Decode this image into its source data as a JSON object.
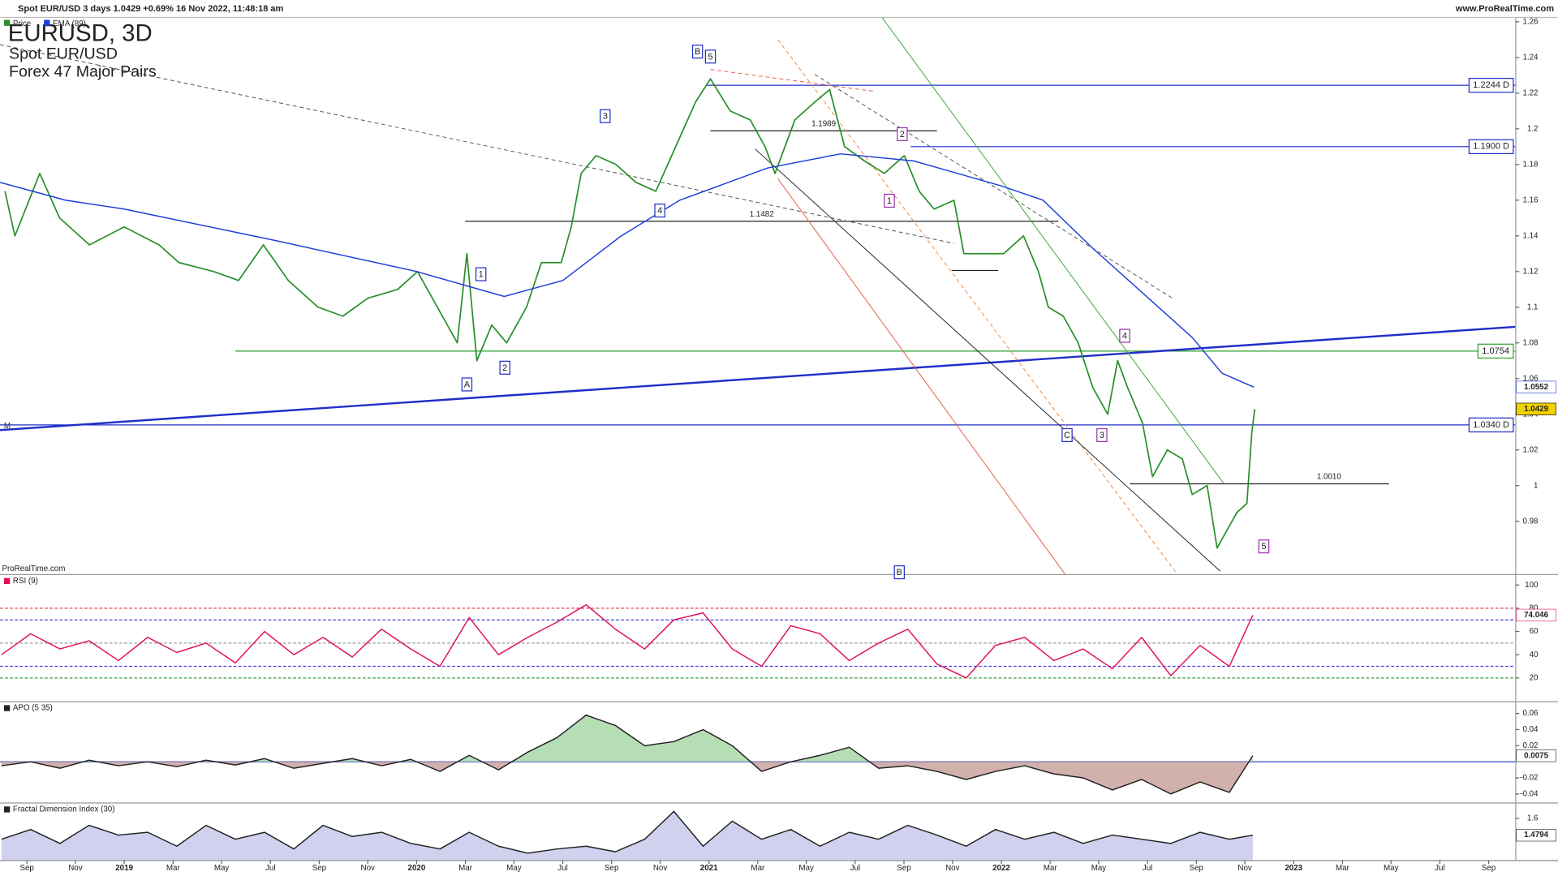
{
  "header": {
    "title": "Spot EUR/USD 3 days 1.0429 +0.69% 16 Nov 2022, 11:48:18 am",
    "site": "www.ProRealTime.com",
    "watermark": "ProRealTime.com",
    "marker": "M"
  },
  "chart_data": [
    {
      "type": "line",
      "title": "EURUSD, 3D",
      "subtitle": "Spot EUR/USD",
      "group": "Forex 47 Major Pairs",
      "xlim": [
        2018.575,
        2023.758
      ],
      "ylim": [
        0.9504,
        1.2622
      ],
      "yticks": [
        0.98,
        1,
        1.02,
        1.04,
        1.06,
        1.08,
        1.1,
        1.12,
        1.14,
        1.16,
        1.18,
        1.2,
        1.22,
        1.24,
        1.26
      ],
      "series": [
        {
          "name": "Price",
          "color": "#2a8f2a",
          "x": [
            2018.592,
            2018.626,
            2018.711,
            2018.779,
            2018.881,
            2019.0,
            2019.119,
            2019.187,
            2019.306,
            2019.391,
            2019.476,
            2019.561,
            2019.663,
            2019.748,
            2019.833,
            2019.935,
            2020.003,
            2020.088,
            2020.139,
            2020.172,
            2020.206,
            2020.257,
            2020.308,
            2020.376,
            2020.427,
            2020.495,
            2020.529,
            2020.563,
            2020.614,
            2020.682,
            2020.75,
            2020.818,
            2020.886,
            2020.954,
            2021.005,
            2021.073,
            2021.141,
            2021.192,
            2021.226,
            2021.294,
            2021.362,
            2021.413,
            2021.464,
            2021.532,
            2021.6,
            2021.668,
            2021.719,
            2021.77,
            2021.838,
            2021.872,
            2021.94,
            2022.008,
            2022.076,
            2022.127,
            2022.161,
            2022.212,
            2022.263,
            2022.313,
            2022.364,
            2022.398,
            2022.432,
            2022.483,
            2022.517,
            2022.568,
            2022.619,
            2022.653,
            2022.704,
            2022.738,
            2022.772,
            2022.806,
            2022.84,
            2022.857,
            2022.867
          ],
          "values": [
            1.165,
            1.14,
            1.175,
            1.15,
            1.135,
            1.145,
            1.135,
            1.125,
            1.12,
            1.115,
            1.135,
            1.115,
            1.1,
            1.095,
            1.105,
            1.11,
            1.12,
            1.095,
            1.08,
            1.13,
            1.07,
            1.09,
            1.08,
            1.1,
            1.125,
            1.125,
            1.145,
            1.175,
            1.185,
            1.18,
            1.17,
            1.165,
            1.19,
            1.215,
            1.228,
            1.21,
            1.205,
            1.19,
            1.175,
            1.205,
            1.215,
            1.222,
            1.19,
            1.182,
            1.175,
            1.185,
            1.165,
            1.155,
            1.16,
            1.13,
            1.13,
            1.13,
            1.14,
            1.12,
            1.1,
            1.095,
            1.08,
            1.055,
            1.04,
            1.07,
            1.055,
            1.035,
            1.005,
            1.02,
            1.015,
            0.995,
            1.0,
            0.965,
            0.975,
            0.985,
            0.99,
            1.03,
            1.0429
          ]
        },
        {
          "name": "EMA (89)",
          "color": "#1f3fd8",
          "x": [
            2018.575,
            2018.8,
            2019.0,
            2019.5,
            2020.0,
            2020.3,
            2020.5,
            2020.7,
            2020.9,
            2021.2,
            2021.45,
            2021.7,
            2022.0,
            2022.143,
            2022.313,
            2022.483,
            2022.653,
            2022.755,
            2022.864
          ],
          "values": [
            1.17,
            1.16,
            1.155,
            1.138,
            1.12,
            1.106,
            1.115,
            1.14,
            1.16,
            1.178,
            1.186,
            1.182,
            1.168,
            1.16,
            1.133,
            1.108,
            1.083,
            1.063,
            1.0552
          ]
        }
      ],
      "levels": [
        {
          "value": 1.2244,
          "label": "1.2244 D",
          "color": "#1f2fc8",
          "from": 2020.99
        },
        {
          "value": 1.19,
          "label": "1.1900 D",
          "color": "#1f2fc8",
          "from": 2021.69
        },
        {
          "value": 1.034,
          "label": "1.0340 D",
          "color": "#1f2fc8",
          "from": 2018.575
        },
        {
          "value": 1.0754,
          "color": "#2ca02c",
          "from": 2019.38
        }
      ],
      "segments": [
        {
          "value": 1.1482,
          "label": "1.1482",
          "x": [
            2020.166,
            2022.195
          ]
        },
        {
          "value": 1.1989,
          "label": "1.1989",
          "x": [
            2021.005,
            2021.78
          ]
        },
        {
          "value": 1.001,
          "label": "1.0010",
          "x": [
            2022.44,
            2023.326
          ]
        },
        {
          "value": 1.1206,
          "x": [
            2021.83,
            2021.99
          ]
        }
      ],
      "trendlines": [
        {
          "x": [
            2018.575,
            2023.758
          ],
          "values": [
            1.0311,
            1.089
          ],
          "color": "#1f2fc8",
          "width": 2
        },
        {
          "x": [
            2021.593,
            2022.762
          ],
          "values": [
            1.2622,
            1.0009
          ],
          "color": "#3aa83a",
          "width": 0.8
        },
        {
          "x": [
            2021.236,
            2022.218
          ],
          "values": [
            1.172,
            0.9503
          ],
          "color": "#e06050",
          "width": 0.8
        },
        {
          "x": [
            2021.236,
            2022.602
          ],
          "values": [
            1.25,
            0.9503
          ],
          "color": "#f08a40",
          "width": 0.8,
          "dash": true
        },
        {
          "x": [
            2021.158,
            2022.749
          ],
          "values": [
            1.1887,
            0.952
          ],
          "color": "#222222",
          "width": 0.8
        },
        {
          "x": [
            2018.575,
            2021.838
          ],
          "values": [
            1.2472,
            1.1358
          ],
          "color": "#555555",
          "width": 0.8,
          "dash": true
        },
        {
          "x": [
            2021.362,
            2022.585
          ],
          "values": [
            1.2305,
            1.1051
          ],
          "color": "#555555",
          "width": 0.8,
          "dash": true
        },
        {
          "x": [
            2021.005,
            2021.566
          ],
          "values": [
            1.2333,
            1.221
          ],
          "color": "#e06050",
          "width": 0.8,
          "dash": true
        }
      ],
      "annotations": [
        {
          "label": "A",
          "x": 2020.172,
          "y": 1.0567,
          "color": "#1f2fc8"
        },
        {
          "label": "1",
          "x": 2020.22,
          "y": 1.1185,
          "color": "#1f2fc8"
        },
        {
          "label": "2",
          "x": 2020.302,
          "y": 1.0661,
          "color": "#1f2fc8"
        },
        {
          "label": "3",
          "x": 2020.645,
          "y": 1.2071,
          "color": "#1f2fc8"
        },
        {
          "label": "4",
          "x": 2020.832,
          "y": 1.1542,
          "color": "#1f2fc8"
        },
        {
          "label": "B",
          "x": 2020.961,
          "y": 1.2433,
          "color": "#1f2fc8"
        },
        {
          "label": "5",
          "x": 2021.005,
          "y": 1.2405,
          "color": "#1f2fc8"
        },
        {
          "label": "2",
          "x": 2021.661,
          "y": 1.197,
          "color": "#9b30b0"
        },
        {
          "label": "1",
          "x": 2021.617,
          "y": 1.1597,
          "color": "#9b30b0"
        },
        {
          "label": "C",
          "x": 2022.225,
          "y": 1.0283,
          "color": "#1f2fc8"
        },
        {
          "label": "3",
          "x": 2022.344,
          "y": 1.0283,
          "color": "#9b30b0"
        },
        {
          "label": "4",
          "x": 2022.422,
          "y": 1.084,
          "color": "#9b30b0"
        },
        {
          "label": "5",
          "x": 2022.898,
          "y": 0.9659,
          "color": "#9b30b0"
        },
        {
          "label": "B",
          "x": 2021.651,
          "y": 0.9514,
          "color": "#1f2fc8"
        }
      ],
      "tags": [
        {
          "value": 1.0552,
          "color": "#ffffff",
          "text_color": "#1f3fd8"
        },
        {
          "value": 1.0429,
          "color": "#f2d200",
          "text_color": "#000000"
        }
      ]
    },
    {
      "type": "line",
      "title": "RSI (9)",
      "xlim": [
        2018.575,
        2023.758
      ],
      "ylim": [
        0,
        107.7
      ],
      "yticks": [
        20,
        40,
        60,
        80,
        100
      ],
      "series": [
        {
          "color": "#e0105f",
          "x": [
            2018.58,
            2018.68,
            2018.78,
            2018.88,
            2018.98,
            2019.08,
            2019.18,
            2019.28,
            2019.38,
            2019.48,
            2019.58,
            2019.68,
            2019.78,
            2019.88,
            2019.98,
            2020.08,
            2020.18,
            2020.28,
            2020.38,
            2020.48,
            2020.58,
            2020.68,
            2020.78,
            2020.88,
            2020.98,
            2021.08,
            2021.18,
            2021.28,
            2021.38,
            2021.48,
            2021.58,
            2021.68,
            2021.78,
            2021.88,
            2021.98,
            2022.08,
            2022.18,
            2022.28,
            2022.38,
            2022.48,
            2022.58,
            2022.68,
            2022.78,
            2022.86
          ],
          "values": [
            40,
            58,
            45,
            52,
            35,
            55,
            42,
            50,
            33,
            60,
            40,
            55,
            38,
            62,
            45,
            30,
            72,
            40,
            55,
            68,
            83,
            62,
            45,
            70,
            76,
            45,
            30,
            65,
            58,
            35,
            50,
            62,
            32,
            20,
            48,
            55,
            35,
            45,
            28,
            55,
            22,
            48,
            30,
            74.046
          ]
        }
      ],
      "levels": [
        {
          "value": 80,
          "color": "#e04040",
          "dash": true
        },
        {
          "value": 70,
          "color": "#4040e0",
          "dash": true
        },
        {
          "value": 50,
          "color": "#999999",
          "dash": true
        },
        {
          "value": 30,
          "color": "#4040e0",
          "dash": true
        },
        {
          "value": 20,
          "color": "#30a030",
          "dash": true
        }
      ],
      "tags": [
        {
          "value": 74.046,
          "color": "#ffffff",
          "text_color": "#e0105f"
        }
      ]
    },
    {
      "type": "area",
      "title": "APO (5 35)",
      "xlim": [
        2018.575,
        2023.758
      ],
      "ylim": [
        -0.0506,
        0.0728
      ],
      "yticks": [
        -0.04,
        -0.02,
        0.02,
        0.04,
        0.06
      ],
      "fill_colors": [
        "#a8d8a8",
        "#c9a39c"
      ],
      "series": [
        {
          "color": "#222222",
          "x": [
            2018.58,
            2018.68,
            2018.78,
            2018.88,
            2018.98,
            2019.08,
            2019.18,
            2019.28,
            2019.38,
            2019.48,
            2019.58,
            2019.68,
            2019.78,
            2019.88,
            2019.98,
            2020.08,
            2020.18,
            2020.28,
            2020.38,
            2020.48,
            2020.58,
            2020.68,
            2020.78,
            2020.88,
            2020.98,
            2021.08,
            2021.18,
            2021.28,
            2021.38,
            2021.48,
            2021.58,
            2021.68,
            2021.78,
            2021.88,
            2021.98,
            2022.08,
            2022.18,
            2022.28,
            2022.38,
            2022.48,
            2022.58,
            2022.68,
            2022.78,
            2022.86
          ],
          "values": [
            -0.005,
            0.0,
            -0.008,
            0.002,
            -0.005,
            0.0,
            -0.006,
            0.002,
            -0.004,
            0.004,
            -0.008,
            -0.002,
            0.004,
            -0.005,
            0.003,
            -0.012,
            0.008,
            -0.01,
            0.012,
            0.03,
            0.058,
            0.045,
            0.02,
            0.025,
            0.04,
            0.02,
            -0.012,
            0.0,
            0.008,
            0.018,
            -0.008,
            -0.005,
            -0.012,
            -0.022,
            -0.012,
            -0.005,
            -0.015,
            -0.02,
            -0.035,
            -0.022,
            -0.04,
            -0.025,
            -0.038,
            0.0075
          ]
        }
      ],
      "levels": [
        {
          "value": 0,
          "color": "#1f2fc8"
        }
      ],
      "tags": [
        {
          "value": 0.0075,
          "color": "#ffffff",
          "text_color": "#222222"
        }
      ]
    },
    {
      "type": "area",
      "title": "Fractal Dimension Index (30)",
      "xlim": [
        2018.575,
        2023.758
      ],
      "ylim": [
        1.3,
        1.7
      ],
      "yticks": [
        1.6
      ],
      "fill_colors": [
        "#c8c8ec"
      ],
      "series": [
        {
          "color": "#222222",
          "x": [
            2018.58,
            2018.68,
            2018.78,
            2018.88,
            2018.98,
            2019.08,
            2019.18,
            2019.28,
            2019.38,
            2019.48,
            2019.58,
            2019.68,
            2019.78,
            2019.88,
            2019.98,
            2020.08,
            2020.18,
            2020.28,
            2020.38,
            2020.48,
            2020.58,
            2020.68,
            2020.78,
            2020.88,
            2020.98,
            2021.08,
            2021.18,
            2021.28,
            2021.38,
            2021.48,
            2021.58,
            2021.68,
            2021.78,
            2021.88,
            2021.98,
            2022.08,
            2022.18,
            2022.28,
            2022.38,
            2022.48,
            2022.58,
            2022.68,
            2022.78,
            2022.86
          ],
          "values": [
            1.45,
            1.52,
            1.42,
            1.55,
            1.48,
            1.5,
            1.4,
            1.55,
            1.45,
            1.5,
            1.38,
            1.55,
            1.47,
            1.5,
            1.42,
            1.38,
            1.5,
            1.4,
            1.35,
            1.38,
            1.4,
            1.36,
            1.45,
            1.65,
            1.4,
            1.58,
            1.45,
            1.52,
            1.4,
            1.5,
            1.45,
            1.55,
            1.48,
            1.4,
            1.52,
            1.45,
            1.5,
            1.42,
            1.48,
            1.45,
            1.42,
            1.5,
            1.45,
            1.4794
          ]
        }
      ],
      "tags": [
        {
          "value": 1.4794,
          "color": "#ffffff",
          "text_color": "#222222"
        }
      ],
      "xticks": [
        {
          "value": 2018.667,
          "label": "Sep"
        },
        {
          "value": 2018.833,
          "label": "Nov"
        },
        2019,
        {
          "value": 2019.167,
          "label": "Mar"
        },
        {
          "value": 2019.333,
          "label": "May"
        },
        {
          "value": 2019.5,
          "label": "Jul"
        },
        {
          "value": 2019.667,
          "label": "Sep"
        },
        {
          "value": 2019.833,
          "label": "Nov"
        },
        2020,
        {
          "value": 2020.167,
          "label": "Mar"
        },
        {
          "value": 2020.333,
          "label": "May"
        },
        {
          "value": 2020.5,
          "label": "Jul"
        },
        {
          "value": 2020.667,
          "label": "Sep"
        },
        {
          "value": 2020.833,
          "label": "Nov"
        },
        2021,
        {
          "value": 2021.167,
          "label": "Mar"
        },
        {
          "value": 2021.333,
          "label": "May"
        },
        {
          "value": 2021.5,
          "label": "Jul"
        },
        {
          "value": 2021.667,
          "label": "Sep"
        },
        {
          "value": 2021.833,
          "label": "Nov"
        },
        2022,
        {
          "value": 2022.167,
          "label": "Mar"
        },
        {
          "value": 2022.333,
          "label": "May"
        },
        {
          "value": 2022.5,
          "label": "Jul"
        },
        {
          "value": 2022.667,
          "label": "Sep"
        },
        {
          "value": 2022.833,
          "label": "Nov"
        },
        2023,
        {
          "value": 2023.167,
          "label": "Mar"
        },
        {
          "value": 2023.333,
          "label": "May"
        },
        {
          "value": 2023.5,
          "label": "Jul"
        },
        {
          "value": 2023.667,
          "label": "Sep"
        }
      ]
    }
  ]
}
